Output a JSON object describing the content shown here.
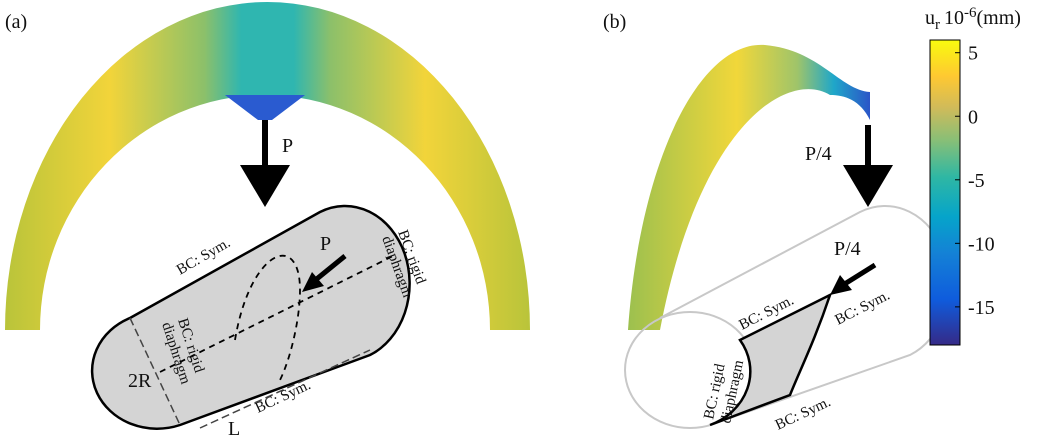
{
  "panels": [
    {
      "label": "(a)",
      "load": "P",
      "cylinder_load": "P",
      "texts": {
        "top_sym": "BC: Sym.",
        "right_bc_1": "BC: rigid",
        "right_bc_2": "diaphragm",
        "left_bc_1": "BC: rigid",
        "left_bc_2": "diaphragm",
        "diameter": "2R",
        "length": "L",
        "bottom_sym": "BC: Sym."
      }
    },
    {
      "label": "(b)",
      "load": "P/4",
      "cylinder_load": "P/4",
      "texts": {
        "top_sym": "BC: Sym.",
        "right_sym": "BC: Sym.",
        "left_bc_1": "BC: rigid",
        "left_bc_2": "diaphragm",
        "bottom_sym": "BC: Sym."
      }
    }
  ],
  "colorbar": {
    "label": {
      "symbol": "u",
      "subscript": "r",
      "base": "10",
      "exponent": "-6",
      "unit": "(mm)"
    },
    "lim": [
      -18,
      6
    ],
    "ticks": [
      5,
      0,
      -5,
      -10,
      -15
    ]
  }
}
